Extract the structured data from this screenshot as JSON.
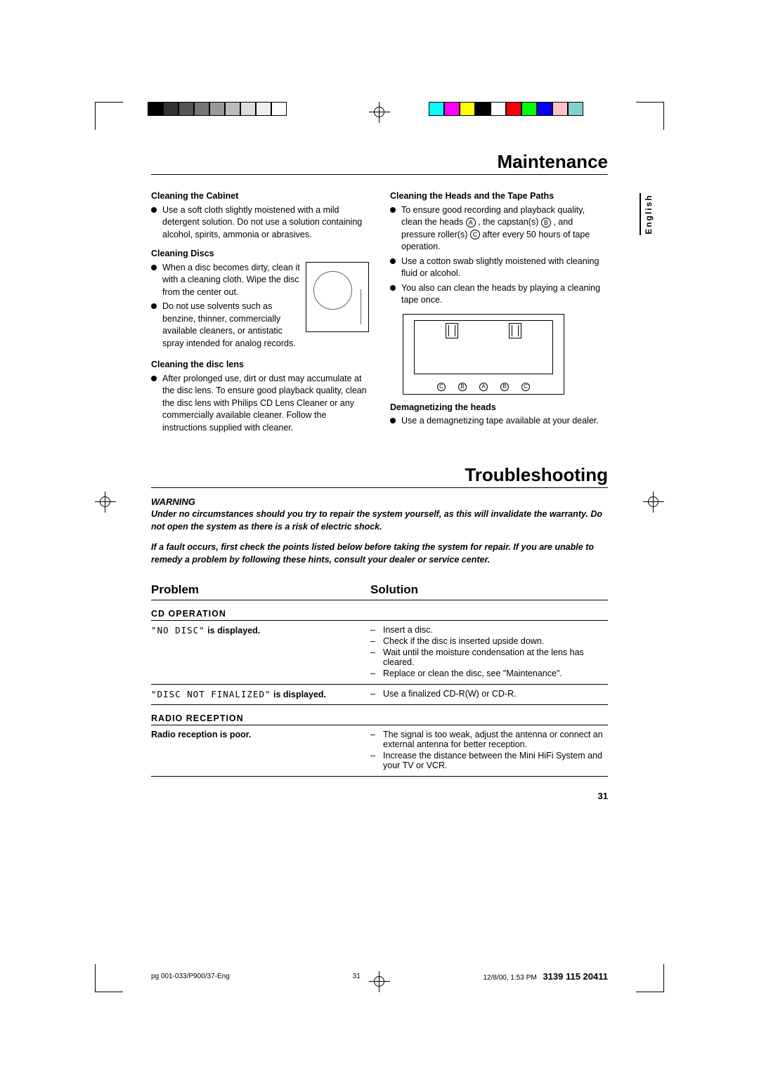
{
  "lang_label": "English",
  "maintenance": {
    "title": "Maintenance",
    "left": {
      "cabinet_head": "Cleaning the Cabinet",
      "cabinet_text": "Use a soft cloth slightly moistened with a mild detergent solution. Do not use a solution containing alcohol, spirits, ammonia or abrasives.",
      "discs_head": "Cleaning Discs",
      "discs_text1": "When a disc becomes dirty, clean it with a cleaning cloth. Wipe the disc from the center out.",
      "discs_text2": "Do not use solvents such as benzine, thinner, commercially available cleaners, or antistatic spray intended for analog records.",
      "lens_head": "Cleaning the disc lens",
      "lens_text": "After prolonged use, dirt or dust may accumulate at the disc lens. To ensure good playback quality, clean the disc lens with Philips CD Lens Cleaner or any commercially available cleaner. Follow the instructions supplied with cleaner."
    },
    "right": {
      "heads_head": "Cleaning the Heads and the Tape Paths",
      "heads_text1a": "To ensure good recording and playback quality, clean the heads ",
      "heads_text1b": ", the capstan(s) ",
      "heads_text1c": ", and pressure roller(s) ",
      "heads_text1d": " after every 50 hours of tape operation.",
      "heads_text2": "Use a cotton swab slightly moistened with cleaning fluid or alcohol.",
      "heads_text3": "You also can clean the heads by playing a cleaning tape once.",
      "tape_labels": [
        "C",
        "B",
        "A",
        "B",
        "C"
      ],
      "demag_head": "Demagnetizing the heads",
      "demag_text": "Use a demagnetizing tape available at your dealer."
    }
  },
  "troubleshooting": {
    "title": "Troubleshooting",
    "warning_label": "WARNING",
    "warning1": "Under no circumstances should you try to repair the system yourself, as this will invalidate the warranty.  Do not open the system as there is a risk of electric shock.",
    "warning2": "If a fault occurs, first check the points listed below before taking the system for repair. If you are unable to remedy a problem by following these hints, consult your dealer or service center.",
    "col_problem": "Problem",
    "col_solution": "Solution",
    "section_cd": "CD OPERATION",
    "cd_row1_problem_lcd": "\"NO DISC\"",
    "cd_row1_problem_tail": " is displayed.",
    "cd_row1_sol": [
      "Insert a disc.",
      "Check if the disc is inserted upside down.",
      "Wait until the moisture condensation at the lens has cleared.",
      "Replace or clean the disc, see \"Maintenance\"."
    ],
    "cd_row2_problem_lcd": "\"DISC NOT FINALIZED\"",
    "cd_row2_problem_tail": " is displayed.",
    "cd_row2_sol": [
      "Use a finalized CD-R(W) or CD-R."
    ],
    "section_radio": "RADIO RECEPTION",
    "radio_row_problem": "Radio reception is poor.",
    "radio_row_sol": [
      "The signal is too weak, adjust the antenna or connect an external antenna for better reception.",
      "Increase the distance between the Mini HiFi System and your TV or VCR."
    ]
  },
  "pagenum": "31",
  "footer": {
    "left": "pg 001-033/P900/37-Eng",
    "mid": "31",
    "date": "12/8/00, 1:53 PM",
    "code": "3139 115 20411"
  },
  "regbar_colors_left": [
    "#000000",
    "#333333",
    "#555555",
    "#777777",
    "#999999",
    "#bbbbbb",
    "#dddddd",
    "#eeeeee",
    "#ffffff"
  ],
  "regbar_colors_right": [
    "#00ffff",
    "#ff00ff",
    "#ffff00",
    "#000000",
    "#ffffff",
    "#ff0000",
    "#00ff00",
    "#0000ff",
    "#ffc0cb",
    "#80d0d0"
  ]
}
